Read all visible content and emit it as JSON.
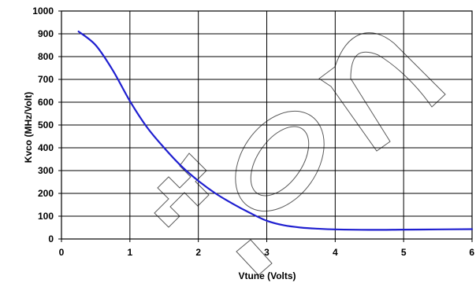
{
  "chart_data": {
    "type": "line",
    "xlabel": "Vtune (Volts)",
    "ylabel": "Kvco (MHz/Volt)",
    "xlim": [
      0,
      6
    ],
    "ylim": [
      0,
      1000
    ],
    "x_ticks": [
      "0",
      "1",
      "2",
      "3",
      "4",
      "5",
      "6"
    ],
    "y_ticks": [
      "0",
      "100",
      "200",
      "300",
      "400",
      "500",
      "600",
      "700",
      "800",
      "900",
      "1000"
    ],
    "grid": true,
    "legend": "none",
    "watermark_text": "Caution",
    "series": [
      {
        "color": "#1f1fd0",
        "x": [
          0.25,
          0.5,
          0.75,
          1.0,
          1.25,
          1.5,
          1.75,
          2.0,
          2.25,
          2.5,
          2.75,
          3.0,
          3.25,
          3.5,
          3.75,
          4.0,
          4.5,
          5.0,
          5.5,
          6.0
        ],
        "y": [
          910,
          850,
          740,
          605,
          490,
          400,
          320,
          255,
          200,
          155,
          115,
          80,
          60,
          50,
          45,
          42,
          40,
          41,
          42,
          43
        ]
      }
    ]
  }
}
